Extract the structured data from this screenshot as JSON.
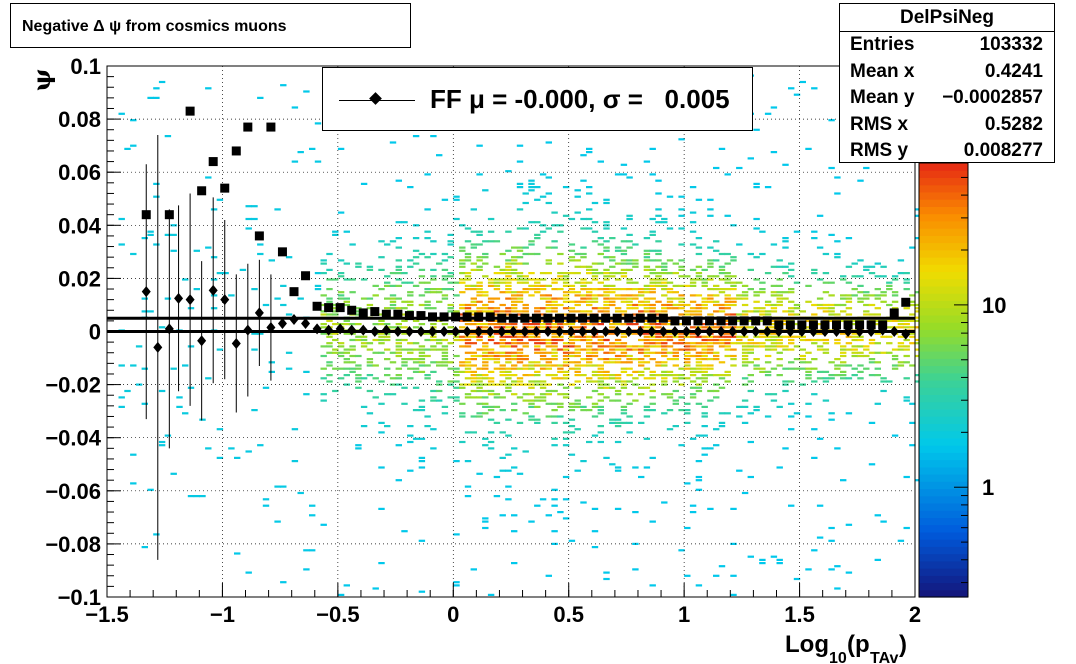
{
  "title": "Negative Δ ψ from cosmics muons",
  "stats": {
    "name": "DelPsiNeg",
    "rows": [
      {
        "label": "Entries",
        "value": "103332"
      },
      {
        "label": "Mean x",
        "value": "0.4241"
      },
      {
        "label": "Mean y",
        "value": "−0.0002857"
      },
      {
        "label": "RMS x",
        "value": "0.5282"
      },
      {
        "label": "RMS y",
        "value": "0.008277"
      }
    ]
  },
  "legend": {
    "text": "FF μ = -0.000, σ =   0.005"
  },
  "chart_data": {
    "type": "heatmap",
    "xlabel": "Log10(pTAv)",
    "ylabel": "ψ",
    "xlim": [
      -1.5,
      2
    ],
    "ylim": [
      -0.1,
      0.1
    ],
    "x_ticks": [
      "−1.5",
      "−1",
      "−0.5",
      "0",
      "0.5",
      "1",
      "1.5",
      "2"
    ],
    "y_ticks": [
      "−0.1",
      "−0.08",
      "−0.06",
      "−0.04",
      "−0.02",
      "0",
      "0.02",
      "0.04",
      "0.06",
      "0.08",
      "0.1"
    ],
    "y_tick_values": [
      -0.1,
      -0.08,
      -0.06,
      -0.04,
      -0.02,
      0,
      0.02,
      0.04,
      0.06,
      0.08,
      0.1
    ],
    "colorbar": {
      "scale": "log",
      "labels": [
        "1",
        "10"
      ],
      "label_values": [
        1,
        10
      ]
    },
    "grid": true,
    "log_z": true,
    "horizontal_lines": [
      0,
      0.005
    ],
    "series": [
      {
        "name": "FF",
        "marker": "diamond",
        "x": [
          -1.33,
          -1.28,
          -1.23,
          -1.19,
          -1.14,
          -1.09,
          -1.04,
          -0.99,
          -0.94,
          -0.89,
          -0.84,
          -0.79,
          -0.74,
          -0.69,
          -0.64,
          -0.59,
          -0.54,
          -0.49,
          -0.44,
          -0.39,
          -0.34,
          -0.29,
          -0.24,
          -0.19,
          -0.14,
          -0.09,
          -0.04,
          0.01,
          0.06,
          0.11,
          0.16,
          0.21,
          0.26,
          0.31,
          0.36,
          0.41,
          0.46,
          0.51,
          0.56,
          0.61,
          0.66,
          0.71,
          0.76,
          0.81,
          0.86,
          0.91,
          0.96,
          1.01,
          1.06,
          1.11,
          1.16,
          1.21,
          1.26,
          1.31,
          1.36,
          1.41,
          1.46,
          1.51,
          1.56,
          1.61,
          1.66,
          1.71,
          1.76,
          1.81,
          1.86,
          1.91,
          1.96
        ],
        "y": [
          0.015,
          -0.006,
          0.001,
          0.0125,
          0.012,
          -0.0035,
          0.0155,
          0.012,
          -0.0045,
          0.0005,
          0.007,
          0.0015,
          0.003,
          0.0045,
          0.003,
          0.001,
          0.0005,
          0.001,
          0.0005,
          0.0005,
          0,
          0.0005,
          0,
          0,
          0,
          0,
          0,
          0,
          0,
          0,
          0,
          0,
          0,
          0,
          0,
          0,
          0,
          0,
          0,
          0,
          0,
          0,
          0,
          0,
          0,
          0,
          0,
          0,
          0,
          0,
          0,
          0,
          0,
          0,
          0,
          0,
          0,
          0,
          0,
          0,
          0,
          0,
          0,
          0,
          0.0005,
          0,
          -0.001
        ],
        "err": [
          0.048,
          0.08,
          0.045,
          0.035,
          0.04,
          0.03,
          0.035,
          0.03,
          0.026,
          0.025,
          0.02,
          0.02,
          0.0,
          0.0,
          0.0,
          0.0,
          0,
          0,
          0,
          0,
          0,
          0,
          0,
          0,
          0,
          0,
          0,
          0,
          0,
          0,
          0,
          0,
          0,
          0,
          0,
          0,
          0,
          0,
          0,
          0,
          0,
          0,
          0,
          0,
          0,
          0,
          0,
          0,
          0,
          0,
          0,
          0,
          0,
          0,
          0,
          0,
          0,
          0,
          0,
          0,
          0,
          0,
          0,
          0,
          0,
          0,
          0
        ]
      },
      {
        "name": "",
        "marker": "square",
        "x": [
          -1.33,
          -1.23,
          -1.14,
          -1.09,
          -1.04,
          -0.99,
          -0.94,
          -0.89,
          -0.84,
          -0.79,
          -0.74,
          -0.69,
          -0.64,
          -0.59,
          -0.54,
          -0.49,
          -0.44,
          -0.39,
          -0.34,
          -0.29,
          -0.24,
          -0.19,
          -0.14,
          -0.09,
          -0.04,
          0.01,
          0.06,
          0.11,
          0.16,
          0.21,
          0.26,
          0.31,
          0.36,
          0.41,
          0.46,
          0.51,
          0.56,
          0.61,
          0.66,
          0.71,
          0.76,
          0.81,
          0.86,
          0.91,
          0.96,
          1.01,
          1.06,
          1.11,
          1.16,
          1.21,
          1.26,
          1.31,
          1.36,
          1.41,
          1.46,
          1.51,
          1.56,
          1.61,
          1.66,
          1.71,
          1.76,
          1.81,
          1.86,
          1.91,
          1.96
        ],
        "y": [
          0.044,
          0.044,
          0.083,
          0.053,
          0.064,
          0.054,
          0.068,
          0.077,
          0.036,
          0.077,
          0.03,
          0.015,
          0.021,
          0.0095,
          0.009,
          0.009,
          0.008,
          0.007,
          0.0075,
          0.0065,
          0.0065,
          0.006,
          0.006,
          0.0055,
          0.0055,
          0.0055,
          0.0055,
          0.0055,
          0.0055,
          0.005,
          0.005,
          0.005,
          0.005,
          0.005,
          0.005,
          0.005,
          0.005,
          0.005,
          0.005,
          0.005,
          0.005,
          0.005,
          0.005,
          0.005,
          0.004,
          0.004,
          0.004,
          0.004,
          0.004,
          0.004,
          0.004,
          0.004,
          0.004,
          0.0025,
          0.0025,
          0.0025,
          0.0025,
          0.0025,
          0.0025,
          0.0025,
          0.0025,
          0.0025,
          0.0025,
          0.007,
          0.011
        ]
      }
    ]
  }
}
